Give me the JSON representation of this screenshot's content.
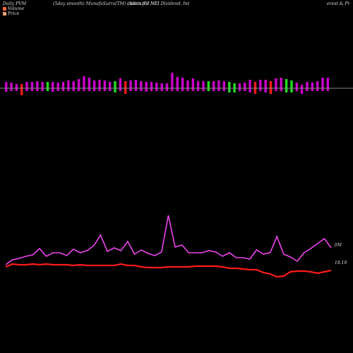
{
  "header": {
    "part1": "Daily PVM",
    "part2": "(5day smooth) MunafaSutra(TM) charts for NEI",
    "part3": "(AllianzGI NEI Dividend, Int",
    "part4": "erest & Pr"
  },
  "legend": {
    "volume_label": "Volume",
    "price_label": "Price",
    "volume_color": "#ff6633",
    "price_color": "#e8a070"
  },
  "colors": {
    "background": "#000000",
    "bar_up": "#cc00cc",
    "bar_down": "#ff1a1a",
    "bar_neutral": "#22dd22",
    "volume_line": "#ee44ee",
    "price_line": "#ff1a1a",
    "baseline": "#888888"
  },
  "chart_data": {
    "type": "bar",
    "volume_label_text": "0M",
    "price_label_text": "18.19",
    "bars": [
      {
        "v": 9,
        "d": -5,
        "c": "up"
      },
      {
        "v": 8,
        "d": -4,
        "c": "up"
      },
      {
        "v": 6,
        "d": -4,
        "c": "up"
      },
      {
        "v": 6,
        "d": -10,
        "c": "down"
      },
      {
        "v": 9,
        "d": -4,
        "c": "up"
      },
      {
        "v": 9,
        "d": -4,
        "c": "up"
      },
      {
        "v": 10,
        "d": -4,
        "c": "up"
      },
      {
        "v": 9,
        "d": -4,
        "c": "up"
      },
      {
        "v": 9,
        "d": -4,
        "c": "neutral"
      },
      {
        "v": 9,
        "d": -5,
        "c": "up"
      },
      {
        "v": 8,
        "d": -4,
        "c": "up"
      },
      {
        "v": 9,
        "d": -4,
        "c": "up"
      },
      {
        "v": 11,
        "d": -4,
        "c": "up"
      },
      {
        "v": 10,
        "d": -4,
        "c": "up"
      },
      {
        "v": 13,
        "d": -4,
        "c": "up"
      },
      {
        "v": 17,
        "d": -4,
        "c": "up"
      },
      {
        "v": 15,
        "d": -4,
        "c": "up"
      },
      {
        "v": 11,
        "d": -4,
        "c": "up"
      },
      {
        "v": 12,
        "d": -4,
        "c": "up"
      },
      {
        "v": 11,
        "d": -4,
        "c": "up"
      },
      {
        "v": 9,
        "d": -4,
        "c": "up"
      },
      {
        "v": 10,
        "d": -6,
        "c": "neutral"
      },
      {
        "v": 14,
        "d": -4,
        "c": "up"
      },
      {
        "v": 10,
        "d": -8,
        "c": "down"
      },
      {
        "v": 11,
        "d": -4,
        "c": "up"
      },
      {
        "v": 12,
        "d": -4,
        "c": "up"
      },
      {
        "v": 10,
        "d": -4,
        "c": "up"
      },
      {
        "v": 9,
        "d": -5,
        "c": "up"
      },
      {
        "v": 9,
        "d": -4,
        "c": "up"
      },
      {
        "v": 8,
        "d": -4,
        "c": "up"
      },
      {
        "v": 7,
        "d": -4,
        "c": "up"
      },
      {
        "v": 7,
        "d": -4,
        "c": "up"
      },
      {
        "v": 22,
        "d": -4,
        "c": "up"
      },
      {
        "v": 16,
        "d": -4,
        "c": "up"
      },
      {
        "v": 15,
        "d": -4,
        "c": "up"
      },
      {
        "v": 11,
        "d": -4,
        "c": "up"
      },
      {
        "v": 14,
        "d": -4,
        "c": "up"
      },
      {
        "v": 10,
        "d": -4,
        "c": "up"
      },
      {
        "v": 10,
        "d": -4,
        "c": "up"
      },
      {
        "v": 10,
        "d": -4,
        "c": "neutral"
      },
      {
        "v": 10,
        "d": -4,
        "c": "up"
      },
      {
        "v": 11,
        "d": -4,
        "c": "up"
      },
      {
        "v": 10,
        "d": -4,
        "c": "up"
      },
      {
        "v": 9,
        "d": -6,
        "c": "neutral"
      },
      {
        "v": 7,
        "d": -6,
        "c": "neutral"
      },
      {
        "v": 7,
        "d": -4,
        "c": "up"
      },
      {
        "v": 8,
        "d": -4,
        "c": "up"
      },
      {
        "v": 12,
        "d": -6,
        "c": "up"
      },
      {
        "v": 9,
        "d": -8,
        "c": "down"
      },
      {
        "v": 12,
        "d": -4,
        "c": "up"
      },
      {
        "v": 12,
        "d": -6,
        "c": "up"
      },
      {
        "v": 10,
        "d": -8,
        "c": "down"
      },
      {
        "v": 14,
        "d": -4,
        "c": "up"
      },
      {
        "v": 15,
        "d": -4,
        "c": "up"
      },
      {
        "v": 13,
        "d": -6,
        "c": "neutral"
      },
      {
        "v": 11,
        "d": -6,
        "c": "neutral"
      },
      {
        "v": 8,
        "d": -4,
        "c": "up"
      },
      {
        "v": 5,
        "d": -8,
        "c": "up"
      },
      {
        "v": 9,
        "d": -4,
        "c": "up"
      },
      {
        "v": 8,
        "d": -4,
        "c": "up"
      },
      {
        "v": 10,
        "d": -4,
        "c": "up"
      },
      {
        "v": 15,
        "d": -4,
        "c": "up"
      },
      {
        "v": 15,
        "d": -4,
        "c": "up"
      }
    ],
    "volume_line": [
      375,
      368,
      366,
      363,
      361,
      352,
      363,
      358,
      358,
      362,
      353,
      358,
      355,
      348,
      333,
      356,
      351,
      355,
      342,
      360,
      354,
      359,
      362,
      357,
      305,
      350,
      347,
      358,
      358,
      358,
      355,
      357,
      363,
      358,
      365,
      365,
      367,
      354,
      360,
      358,
      335,
      360,
      364,
      370,
      358,
      352,
      345,
      338,
      351
    ],
    "price_line": [
      378,
      374,
      375,
      375,
      374,
      375,
      374,
      375,
      375,
      375,
      376,
      375,
      376,
      376,
      376,
      376,
      376,
      374,
      376,
      376,
      378,
      379,
      379,
      379,
      378,
      378,
      378,
      378,
      377,
      377,
      377,
      377,
      378,
      380,
      380,
      381,
      382,
      382,
      386,
      388,
      392,
      391,
      385,
      384,
      384,
      385,
      387,
      385,
      383
    ]
  }
}
